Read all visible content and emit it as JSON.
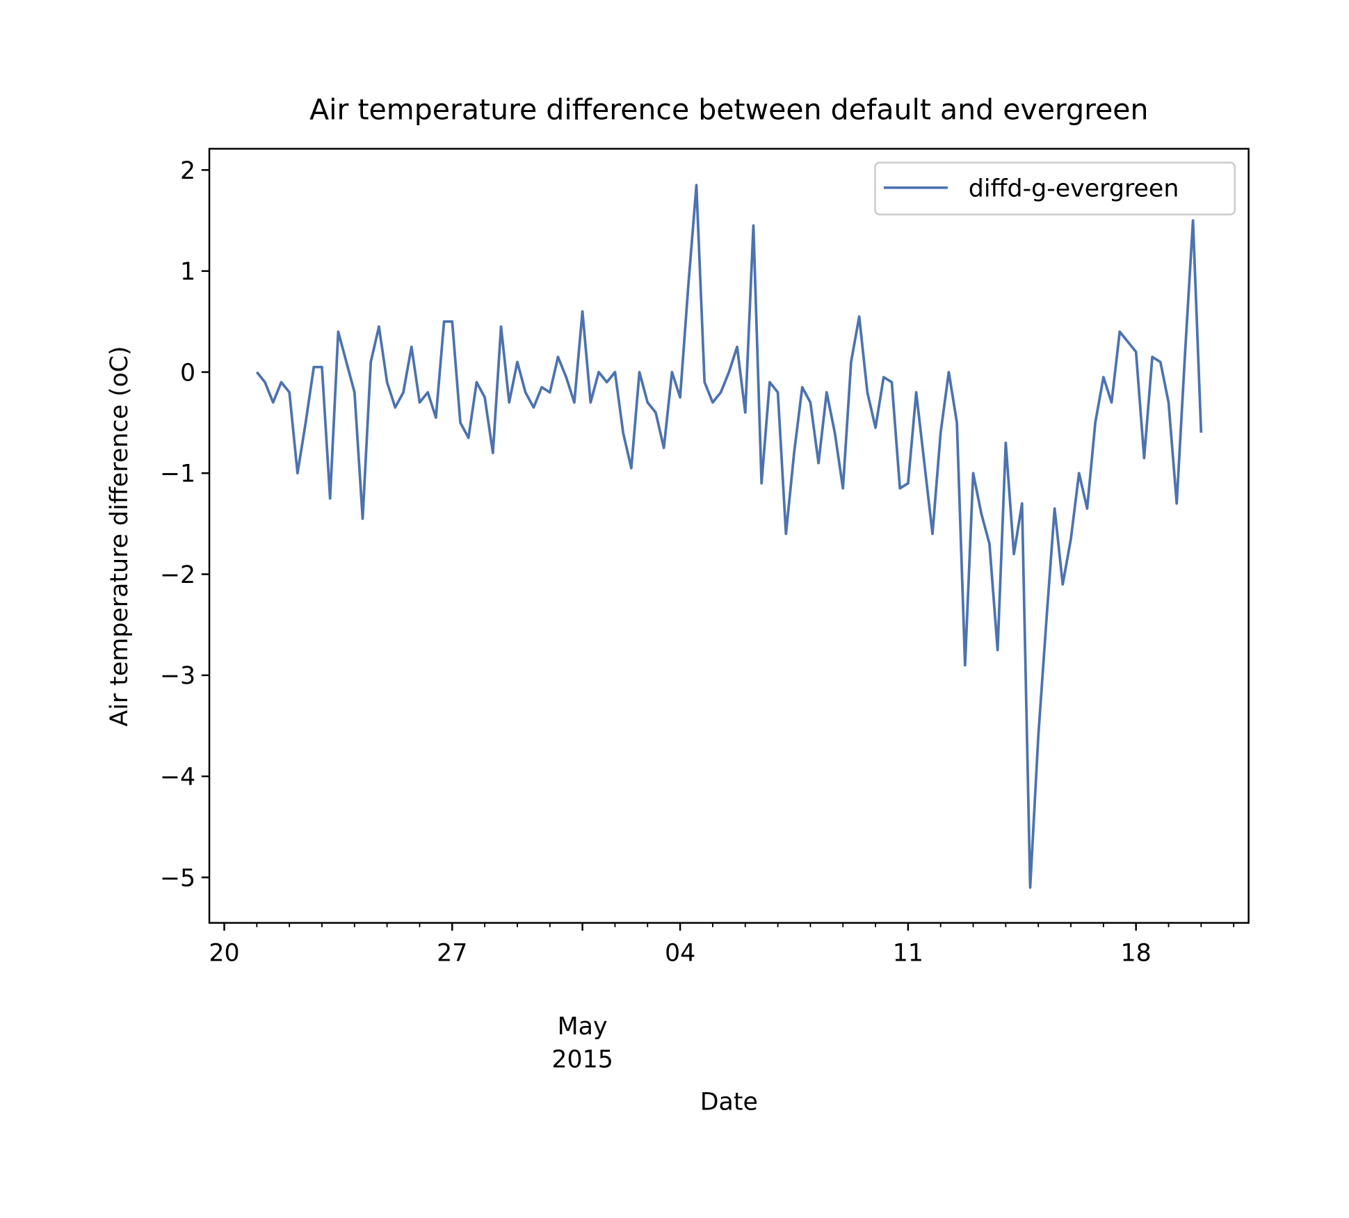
{
  "chart_data": {
    "type": "line",
    "title": "Air temperature difference between default and evergreen",
    "x_label": "Date",
    "y_label": "Air temperature difference (oC)",
    "legend_position": "upper right",
    "grid": false,
    "xlim": [
      "2015-04-19T13:00",
      "2015-05-21T11:00"
    ],
    "ylim": [
      -5.45,
      2.21
    ],
    "xticks": [
      {
        "value": "2015-04-20",
        "label": "20"
      },
      {
        "value": "2015-04-27",
        "label": "27"
      },
      {
        "value": "2015-05-01",
        "label": "May\n2015"
      },
      {
        "value": "2015-05-04",
        "label": "04"
      },
      {
        "value": "2015-05-11",
        "label": "11"
      },
      {
        "value": "2015-05-18",
        "label": "18"
      }
    ],
    "xminorticks": [
      "2015-04-21",
      "2015-04-22",
      "2015-04-23",
      "2015-04-24",
      "2015-04-25",
      "2015-04-26",
      "2015-04-28",
      "2015-04-29",
      "2015-04-30",
      "2015-05-02",
      "2015-05-03",
      "2015-05-05",
      "2015-05-06",
      "2015-05-07",
      "2015-05-08",
      "2015-05-09",
      "2015-05-10",
      "2015-05-12",
      "2015-05-13",
      "2015-05-14",
      "2015-05-15",
      "2015-05-16",
      "2015-05-17",
      "2015-05-19",
      "2015-05-20",
      "2015-05-21"
    ],
    "yticks": [
      {
        "value": -5,
        "label": "−5"
      },
      {
        "value": -4,
        "label": "−4"
      },
      {
        "value": -3,
        "label": "−3"
      },
      {
        "value": -2,
        "label": "−2"
      },
      {
        "value": -1,
        "label": "−1"
      },
      0,
      1,
      2
    ],
    "x": [
      "2015-04-21T00:00",
      "2015-04-21T06:00",
      "2015-04-21T12:00",
      "2015-04-21T18:00",
      "2015-04-22T00:00",
      "2015-04-22T06:00",
      "2015-04-22T12:00",
      "2015-04-22T18:00",
      "2015-04-23T00:00",
      "2015-04-23T06:00",
      "2015-04-23T12:00",
      "2015-04-23T18:00",
      "2015-04-24T00:00",
      "2015-04-24T06:00",
      "2015-04-24T12:00",
      "2015-04-24T18:00",
      "2015-04-25T00:00",
      "2015-04-25T06:00",
      "2015-04-25T12:00",
      "2015-04-25T18:00",
      "2015-04-26T00:00",
      "2015-04-26T06:00",
      "2015-04-26T12:00",
      "2015-04-26T18:00",
      "2015-04-27T00:00",
      "2015-04-27T06:00",
      "2015-04-27T12:00",
      "2015-04-27T18:00",
      "2015-04-28T00:00",
      "2015-04-28T06:00",
      "2015-04-28T12:00",
      "2015-04-28T18:00",
      "2015-04-29T00:00",
      "2015-04-29T06:00",
      "2015-04-29T12:00",
      "2015-04-29T18:00",
      "2015-04-30T00:00",
      "2015-04-30T06:00",
      "2015-04-30T12:00",
      "2015-04-30T18:00",
      "2015-05-01T00:00",
      "2015-05-01T06:00",
      "2015-05-01T12:00",
      "2015-05-01T18:00",
      "2015-05-02T00:00",
      "2015-05-02T06:00",
      "2015-05-02T12:00",
      "2015-05-02T18:00",
      "2015-05-03T00:00",
      "2015-05-03T06:00",
      "2015-05-03T12:00",
      "2015-05-03T18:00",
      "2015-05-04T00:00",
      "2015-05-04T06:00",
      "2015-05-04T12:00",
      "2015-05-04T18:00",
      "2015-05-05T00:00",
      "2015-05-05T06:00",
      "2015-05-05T12:00",
      "2015-05-05T18:00",
      "2015-05-06T00:00",
      "2015-05-06T06:00",
      "2015-05-06T12:00",
      "2015-05-06T18:00",
      "2015-05-07T00:00",
      "2015-05-07T06:00",
      "2015-05-07T12:00",
      "2015-05-07T18:00",
      "2015-05-08T00:00",
      "2015-05-08T06:00",
      "2015-05-08T12:00",
      "2015-05-08T18:00",
      "2015-05-09T00:00",
      "2015-05-09T06:00",
      "2015-05-09T12:00",
      "2015-05-09T18:00",
      "2015-05-10T00:00",
      "2015-05-10T06:00",
      "2015-05-10T12:00",
      "2015-05-10T18:00",
      "2015-05-11T00:00",
      "2015-05-11T06:00",
      "2015-05-11T12:00",
      "2015-05-11T18:00",
      "2015-05-12T00:00",
      "2015-05-12T06:00",
      "2015-05-12T12:00",
      "2015-05-12T18:00",
      "2015-05-13T00:00",
      "2015-05-13T06:00",
      "2015-05-13T12:00",
      "2015-05-13T18:00",
      "2015-05-14T00:00",
      "2015-05-14T06:00",
      "2015-05-14T12:00",
      "2015-05-14T18:00",
      "2015-05-15T00:00",
      "2015-05-15T06:00",
      "2015-05-15T12:00",
      "2015-05-15T18:00",
      "2015-05-16T00:00",
      "2015-05-16T06:00",
      "2015-05-16T12:00",
      "2015-05-16T18:00",
      "2015-05-17T00:00",
      "2015-05-17T06:00",
      "2015-05-17T12:00",
      "2015-05-17T18:00",
      "2015-05-18T00:00",
      "2015-05-18T06:00",
      "2015-05-18T12:00",
      "2015-05-18T18:00",
      "2015-05-19T00:00",
      "2015-05-19T06:00",
      "2015-05-19T12:00",
      "2015-05-19T18:00",
      "2015-05-20T00:00"
    ],
    "series": [
      {
        "name": "diffd-g-evergreen",
        "color": "#4c72b0",
        "values": [
          0,
          -0.1,
          -0.3,
          -0.1,
          -0.2,
          -1.0,
          -0.5,
          0.05,
          0.05,
          -1.25,
          0.4,
          0.1,
          -0.2,
          -1.45,
          0.1,
          0.45,
          -0.1,
          -0.35,
          -0.2,
          0.25,
          -0.3,
          -0.2,
          -0.45,
          0.5,
          0.5,
          -0.5,
          -0.65,
          -0.1,
          -0.25,
          -0.8,
          0.45,
          -0.3,
          0.1,
          -0.2,
          -0.35,
          -0.15,
          -0.2,
          0.15,
          -0.05,
          -0.3,
          0.6,
          -0.3,
          0,
          -0.1,
          0,
          -0.6,
          -0.95,
          0,
          -0.3,
          -0.4,
          -0.75,
          0,
          -0.25,
          0.85,
          1.85,
          -0.1,
          -0.3,
          -0.2,
          0,
          0.25,
          -0.4,
          1.45,
          -1.1,
          -0.1,
          -0.2,
          -1.6,
          -0.8,
          -0.15,
          -0.3,
          -0.9,
          -0.2,
          -0.6,
          -1.15,
          0.1,
          0.55,
          -0.2,
          -0.55,
          -0.05,
          -0.1,
          -1.15,
          -1.1,
          -0.2,
          -0.9,
          -1.6,
          -0.6,
          0,
          -0.5,
          -2.9,
          -1.0,
          -1.4,
          -1.7,
          -2.75,
          -0.7,
          -1.8,
          -1.3,
          -5.1,
          -3.6,
          -2.45,
          -1.35,
          -2.1,
          -1.65,
          -1.0,
          -1.35,
          -0.5,
          -0.05,
          -0.3,
          0.4,
          0.3,
          0.2,
          -0.85,
          0.15,
          0.1,
          -0.3,
          -1.3,
          0.15,
          1.5,
          -0.6
        ]
      }
    ]
  }
}
